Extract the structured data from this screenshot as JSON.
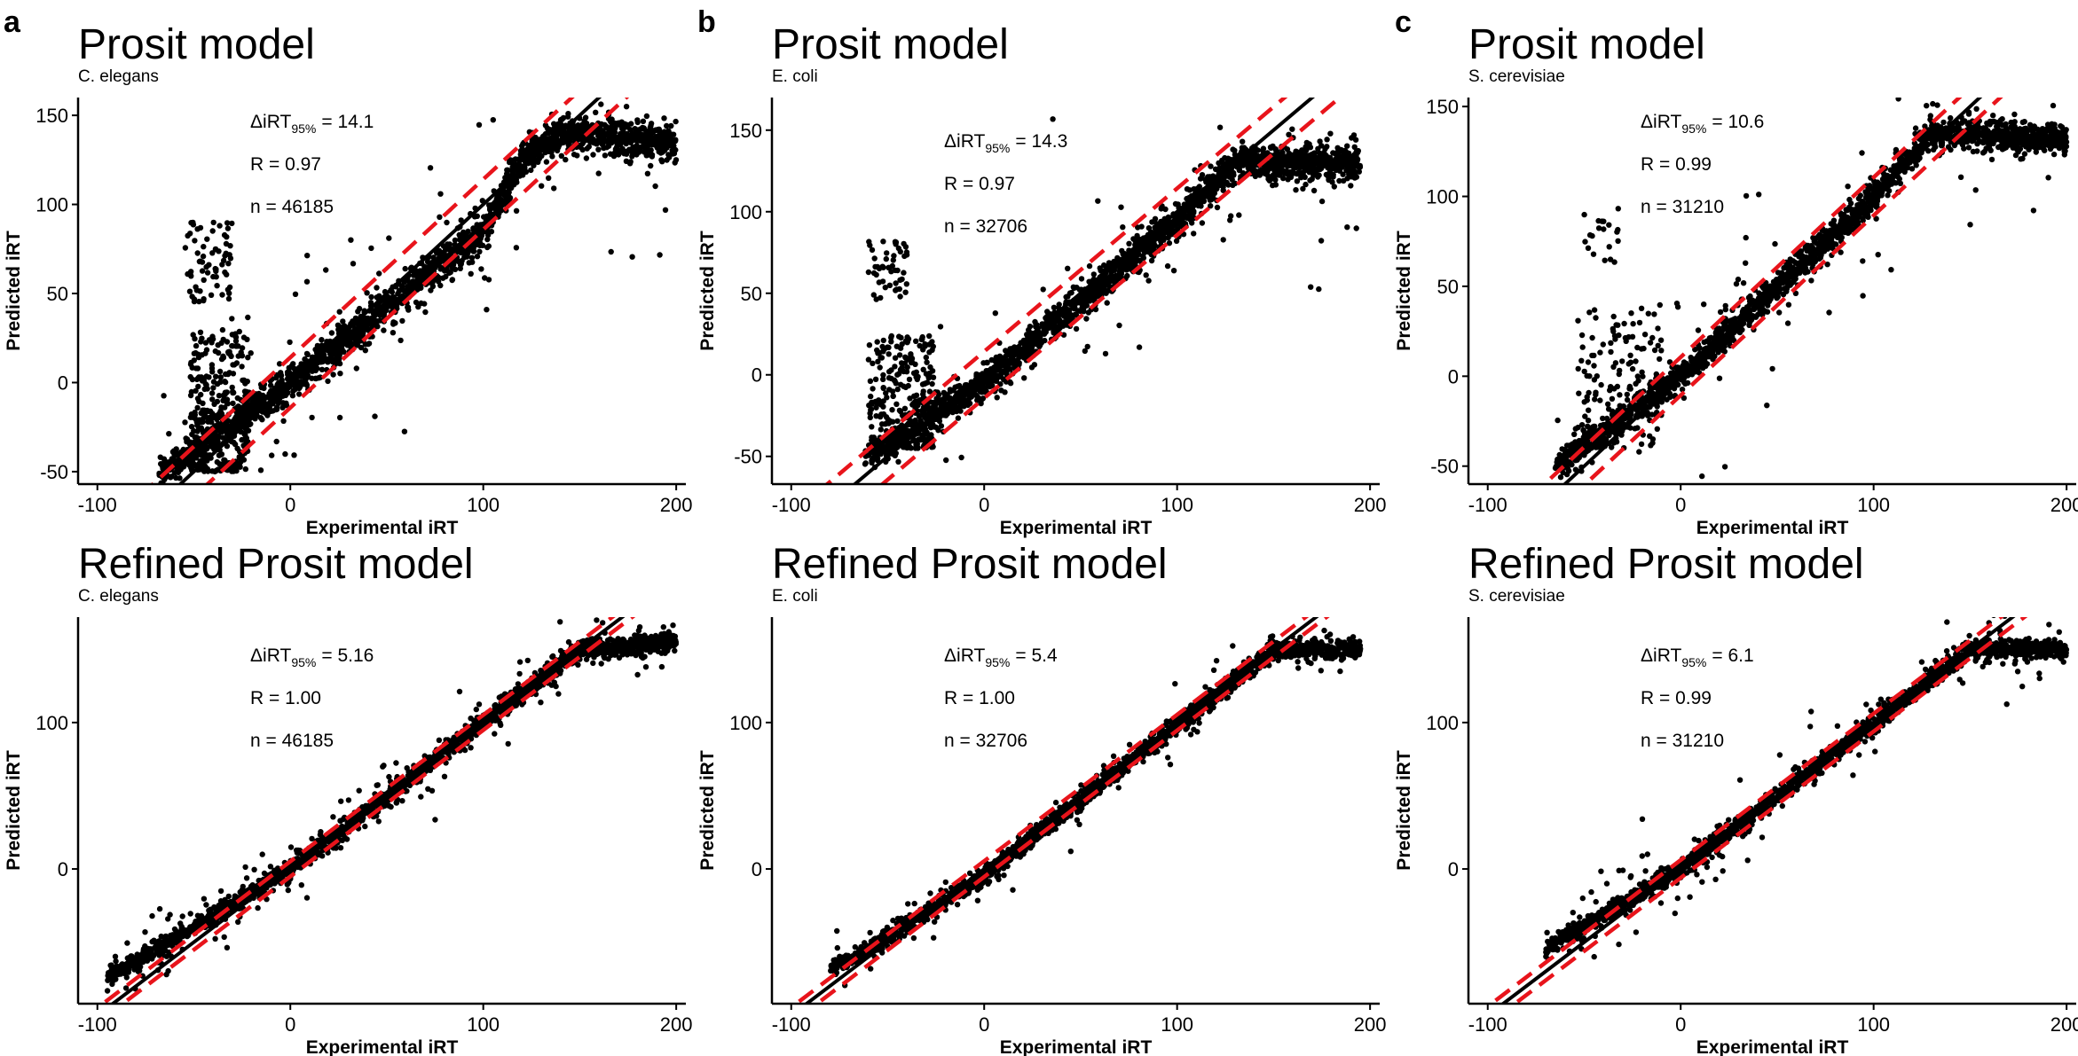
{
  "chart_data": [
    {
      "panel_label": "a",
      "type": "scatter",
      "title": "Prosit model",
      "subtitle": "C. elegans",
      "xlabel": "Experimental iRT",
      "ylabel": "Predicted iRT",
      "xlim": [
        -110,
        205
      ],
      "ylim": [
        -57,
        160
      ],
      "xticks": [
        -100,
        0,
        100,
        200
      ],
      "yticks": [
        -50,
        0,
        50,
        100,
        150
      ],
      "annotation": {
        "delta_prefix": "ΔiRT",
        "delta_sub": "95%",
        "delta_value": "= 14.1",
        "r": "R = 0.97",
        "n": "n = 46185"
      },
      "identity_line": true,
      "band_halfwidth": 14.1,
      "trend": [
        [
          -68,
          -52
        ],
        [
          0,
          0
        ],
        [
          100,
          85
        ],
        [
          120,
          125
        ],
        [
          140,
          140
        ],
        [
          200,
          135
        ]
      ],
      "spread": 5.5,
      "n_points": 1500,
      "outlier_cluster": {
        "x": [
          -52,
          -22
        ],
        "y": [
          -50,
          30
        ],
        "n": 320
      },
      "upper_cluster": {
        "x": [
          -55,
          -30
        ],
        "y": [
          45,
          95
        ],
        "n": 70
      },
      "outliers": 110
    },
    {
      "panel_label": "b",
      "type": "scatter",
      "title": "Prosit model",
      "subtitle": "E. coli",
      "xlabel": "Experimental iRT",
      "ylabel": "Predicted iRT",
      "xlim": [
        -110,
        205
      ],
      "ylim": [
        -67,
        170
      ],
      "xticks": [
        -100,
        0,
        100,
        200
      ],
      "yticks": [
        -50,
        0,
        50,
        100,
        150
      ],
      "annotation": {
        "delta_prefix": "ΔiRT",
        "delta_sub": "95%",
        "delta_value": "= 14.3",
        "r": "R = 0.97",
        "n": "n = 32706"
      },
      "identity_line": true,
      "band_halfwidth": 14.3,
      "trend": [
        [
          -62,
          -52
        ],
        [
          0,
          -5
        ],
        [
          100,
          95
        ],
        [
          130,
          130
        ],
        [
          195,
          130
        ]
      ],
      "spread": 5.5,
      "n_points": 1400,
      "outlier_cluster": {
        "x": [
          -60,
          -25
        ],
        "y": [
          -45,
          25
        ],
        "n": 260
      },
      "upper_cluster": {
        "x": [
          -60,
          -40
        ],
        "y": [
          45,
          85
        ],
        "n": 50
      },
      "outliers": 90
    },
    {
      "panel_label": "c",
      "type": "scatter",
      "title": "Prosit model",
      "subtitle": "S. cerevisiae",
      "xlabel": "Experimental iRT",
      "ylabel": "Predicted iRT",
      "xlim": [
        -110,
        205
      ],
      "ylim": [
        -60,
        155
      ],
      "xticks": [
        -100,
        0,
        100,
        200
      ],
      "yticks": [
        -50,
        0,
        50,
        100,
        150
      ],
      "annotation": {
        "delta_prefix": "ΔiRT",
        "delta_sub": "95%",
        "delta_value": "= 10.6",
        "r": "R = 0.99",
        "n": "n = 31210"
      },
      "identity_line": true,
      "band_halfwidth": 10.6,
      "trend": [
        [
          -65,
          -50
        ],
        [
          0,
          0
        ],
        [
          100,
          100
        ],
        [
          130,
          135
        ],
        [
          200,
          132
        ]
      ],
      "spread": 4.5,
      "n_points": 1400,
      "outlier_cluster": {
        "x": [
          -55,
          -10
        ],
        "y": [
          -40,
          40
        ],
        "n": 160
      },
      "upper_cluster": {
        "x": [
          -50,
          -30
        ],
        "y": [
          60,
          95
        ],
        "n": 20
      },
      "outliers": 80
    },
    {
      "panel_label": "",
      "type": "scatter",
      "title": "Refined Prosit model",
      "subtitle": "C. elegans",
      "xlabel": "Experimental iRT",
      "ylabel": "Predicted iRT",
      "xlim": [
        -110,
        205
      ],
      "ylim": [
        -92,
        172
      ],
      "xticks": [
        -100,
        0,
        100,
        200
      ],
      "yticks": [
        0,
        100
      ],
      "annotation": {
        "delta_prefix": "ΔiRT",
        "delta_sub": "95%",
        "delta_value": "= 5.16",
        "r": "R = 1.00",
        "n": "n = 46185"
      },
      "identity_line": true,
      "band_halfwidth": 5.16,
      "trend": [
        [
          -95,
          -75
        ],
        [
          0,
          0
        ],
        [
          150,
          150
        ],
        [
          200,
          155
        ]
      ],
      "spread": 3.5,
      "n_points": 1400,
      "outlier_cluster": {
        "x": [
          -40,
          40
        ],
        "y": [
          -40,
          60
        ],
        "n": 0
      },
      "upper_cluster": {
        "x": [
          0,
          0
        ],
        "y": [
          0,
          0
        ],
        "n": 0
      },
      "outliers": 170
    },
    {
      "panel_label": "",
      "type": "scatter",
      "title": "Refined Prosit model",
      "subtitle": "E. coli",
      "xlabel": "Experimental iRT",
      "ylabel": "Predicted iRT",
      "xlim": [
        -110,
        205
      ],
      "ylim": [
        -92,
        172
      ],
      "xticks": [
        -100,
        0,
        100,
        200
      ],
      "yticks": [
        0,
        100
      ],
      "annotation": {
        "delta_prefix": "ΔiRT",
        "delta_sub": "95%",
        "delta_value": "= 5.4",
        "r": "R = 1.00",
        "n": "n = 32706"
      },
      "identity_line": true,
      "band_halfwidth": 5.4,
      "trend": [
        [
          -80,
          -70
        ],
        [
          0,
          -5
        ],
        [
          150,
          150
        ],
        [
          195,
          150
        ]
      ],
      "spread": 3.5,
      "n_points": 1300,
      "outlier_cluster": {
        "x": [
          0,
          0
        ],
        "y": [
          0,
          0
        ],
        "n": 0
      },
      "upper_cluster": {
        "x": [
          0,
          0
        ],
        "y": [
          0,
          0
        ],
        "n": 0
      },
      "outliers": 70
    },
    {
      "panel_label": "",
      "type": "scatter",
      "title": "Refined Prosit model",
      "subtitle": "S. cerevisiae",
      "xlabel": "Experimental iRT",
      "ylabel": "Predicted iRT",
      "xlim": [
        -110,
        205
      ],
      "ylim": [
        -92,
        172
      ],
      "xticks": [
        -100,
        0,
        100,
        200
      ],
      "yticks": [
        0,
        100
      ],
      "annotation": {
        "delta_prefix": "ΔiRT",
        "delta_sub": "95%",
        "delta_value": "= 6.1",
        "r": "R = 0.99",
        "n": "n = 31210"
      },
      "identity_line": true,
      "band_halfwidth": 6.1,
      "trend": [
        [
          -70,
          -55
        ],
        [
          0,
          0
        ],
        [
          150,
          150
        ],
        [
          200,
          150
        ]
      ],
      "spread": 3.5,
      "n_points": 1300,
      "outlier_cluster": {
        "x": [
          -40,
          40
        ],
        "y": [
          -40,
          60
        ],
        "n": 0
      },
      "upper_cluster": {
        "x": [
          0,
          0
        ],
        "y": [
          0,
          0
        ],
        "n": 0
      },
      "outliers": 120
    }
  ],
  "colors": {
    "points": "#000000",
    "identity": "#000000",
    "band": "#e8141b",
    "axis": "#000000"
  }
}
